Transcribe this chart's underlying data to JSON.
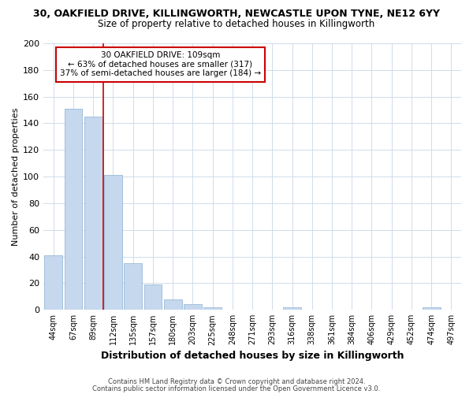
{
  "title_line1": "30, OAKFIELD DRIVE, KILLINGWORTH, NEWCASTLE UPON TYNE, NE12 6YY",
  "title_line2": "Size of property relative to detached houses in Killingworth",
  "xlabel": "Distribution of detached houses by size in Killingworth",
  "ylabel": "Number of detached properties",
  "categories": [
    "44sqm",
    "67sqm",
    "89sqm",
    "112sqm",
    "135sqm",
    "157sqm",
    "180sqm",
    "203sqm",
    "225sqm",
    "248sqm",
    "271sqm",
    "293sqm",
    "316sqm",
    "338sqm",
    "361sqm",
    "384sqm",
    "406sqm",
    "429sqm",
    "452sqm",
    "474sqm",
    "497sqm"
  ],
  "values": [
    41,
    151,
    145,
    101,
    35,
    19,
    8,
    4,
    2,
    0,
    0,
    0,
    2,
    0,
    0,
    0,
    0,
    0,
    0,
    2,
    0
  ],
  "bar_color": "#c5d8ee",
  "bar_edge_color": "#8ab0d0",
  "bg_color": "#ffffff",
  "grid_color": "#d0dcea",
  "vline_color": "#cc0000",
  "vline_x": 2.5,
  "ann_line1": "30 OAKFIELD DRIVE: 109sqm",
  "ann_line2": "← 63% of detached houses are smaller (317)",
  "ann_line3": "37% of semi-detached houses are larger (184) →",
  "ann_edge_color": "#cc0000",
  "ylim": [
    0,
    200
  ],
  "yticks": [
    0,
    20,
    40,
    60,
    80,
    100,
    120,
    140,
    160,
    180,
    200
  ],
  "footer1": "Contains HM Land Registry data © Crown copyright and database right 2024.",
  "footer2": "Contains public sector information licensed under the Open Government Licence v3.0."
}
